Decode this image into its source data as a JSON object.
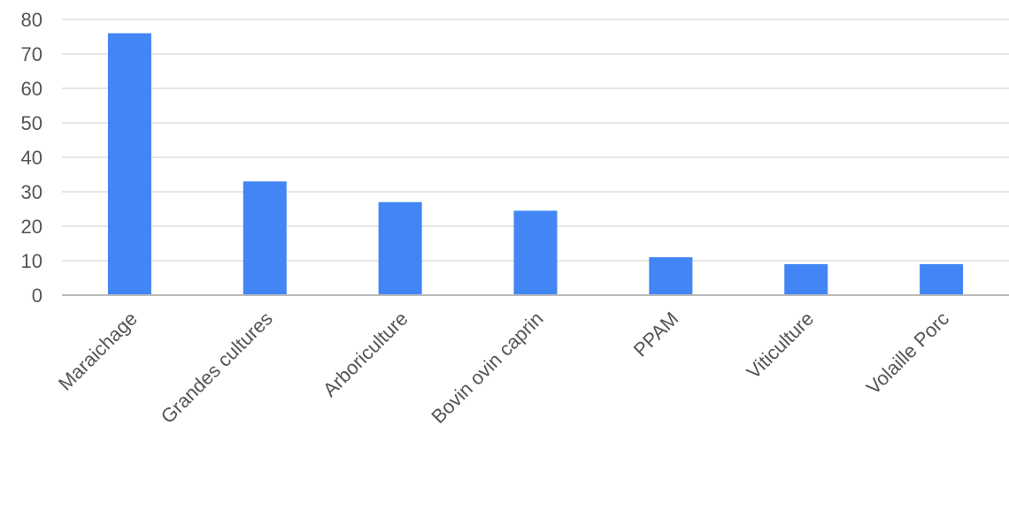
{
  "chart_data": {
    "type": "bar",
    "title": "",
    "xlabel": "",
    "ylabel": "",
    "categories": [
      "Maraichage",
      "Grandes cultures",
      "Arboriculture",
      "Bovin ovin caprin",
      "PPAM",
      "Viticulture",
      "Volaille Porc"
    ],
    "values": [
      76,
      33,
      27,
      24.5,
      11,
      9,
      9
    ],
    "ylim": [
      0,
      80
    ],
    "yticks": [
      0,
      10,
      20,
      30,
      40,
      50,
      60,
      70,
      80
    ],
    "grid": true,
    "legend": "none",
    "bar_color": "#4285F4"
  }
}
